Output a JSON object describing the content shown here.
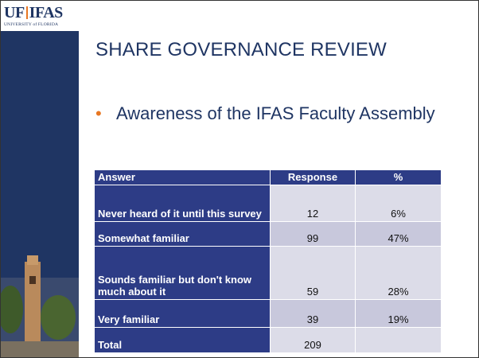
{
  "logo": {
    "uf": "UF",
    "ifas": "IFAS",
    "university": "UNIVERSITY of FLORIDA"
  },
  "title": "SHARE GOVERNANCE REVIEW",
  "bullet": "Awareness of the IFAS Faculty Assembly",
  "table": {
    "header": [
      "Answer",
      "Response",
      "%"
    ],
    "rows": [
      [
        "Never heard of it until this survey",
        "12",
        "6%"
      ],
      [
        "Somewhat familiar",
        "99",
        "47%"
      ],
      [
        "Sounds familiar but don't know much about it",
        "59",
        "28%"
      ],
      [
        "Very familiar",
        "39",
        "19%"
      ],
      [
        "Total",
        "209",
        null
      ]
    ]
  }
}
